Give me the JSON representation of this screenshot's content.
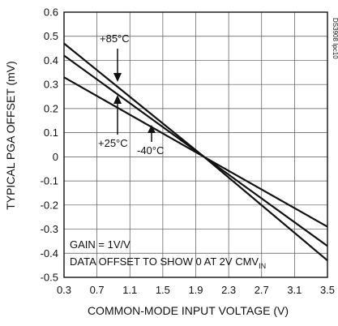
{
  "chart_data": {
    "type": "line",
    "xlabel": "COMMON-MODE INPUT VOLTAGE (V)",
    "ylabel": "TYPICAL PGA OFFSET (mV)",
    "xlim": [
      0.3,
      3.5
    ],
    "ylim": [
      -0.5,
      0.6
    ],
    "x_ticks": [
      "0.3",
      "0.7",
      "1.1",
      "1.5",
      "1.9",
      "2.3",
      "2.7",
      "3.1",
      "3.5"
    ],
    "y_ticks": [
      "0.6",
      "0.5",
      "0.4",
      "0.3",
      "0.2",
      "0.1",
      "0",
      "-0.1",
      "-0.2",
      "-0.3",
      "-0.4",
      "-0.5"
    ],
    "grid": true,
    "series": [
      {
        "name": "+85°C",
        "x": [
          0.3,
          2.0,
          3.5
        ],
        "y": [
          0.47,
          0.0,
          -0.43
        ]
      },
      {
        "name": "+25°C",
        "x": [
          0.3,
          2.0,
          3.5
        ],
        "y": [
          0.42,
          0.0,
          -0.37
        ]
      },
      {
        "name": "-40°C",
        "x": [
          0.3,
          2.0,
          3.5
        ],
        "y": [
          0.33,
          0.0,
          -0.29
        ]
      }
    ],
    "annotations": {
      "label_85": "+85°C",
      "label_25": "+25°C",
      "label_m40": "-40°C",
      "gain_note": "GAIN = 1V/V",
      "offset_note_main": "DATA OFFSET TO SHOW 0 AT 2V CMV",
      "offset_note_sub": "IN",
      "figure_id": "DS3908 Ipc10"
    }
  }
}
